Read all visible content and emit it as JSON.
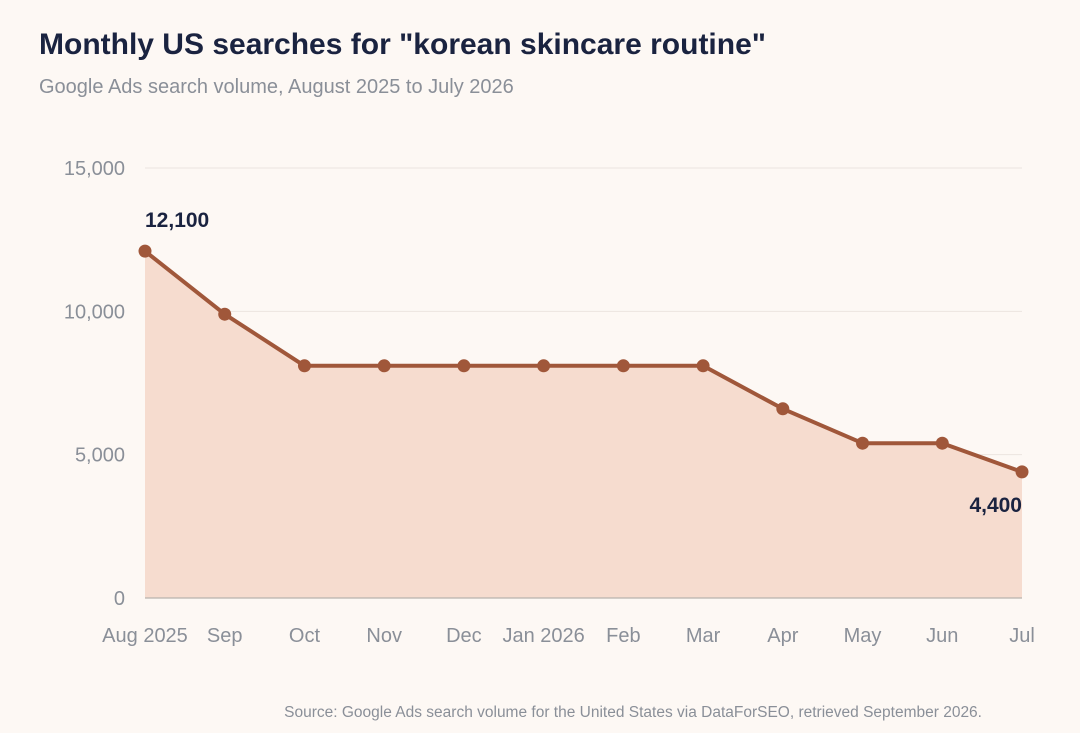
{
  "title": "Monthly US searches for \"korean skincare routine\"",
  "subtitle": "Google Ads search volume, August 2025 to July 2026",
  "source": "Source: Google Ads search volume for the United States via DataForSEO, retrieved September 2026.",
  "colors": {
    "line": "#a0573a",
    "fill": "#f6dccf",
    "grid": "#ece5df",
    "axis": "#b8b3ae",
    "text": "#8a8f98",
    "label": "#1a2340"
  },
  "chart_data": {
    "type": "area",
    "categories": [
      "Aug 2025",
      "Sep",
      "Oct",
      "Nov",
      "Dec",
      "Jan 2026",
      "Feb",
      "Mar",
      "Apr",
      "May",
      "Jun",
      "Jul"
    ],
    "values": [
      12100,
      9900,
      8100,
      8100,
      8100,
      8100,
      8100,
      8100,
      6600,
      5400,
      5400,
      4400
    ],
    "ylim": [
      0,
      15000
    ],
    "yticks": [
      0,
      5000,
      10000,
      15000
    ],
    "ytick_labels": [
      "0",
      "5,000",
      "10,000",
      "15,000"
    ],
    "data_labels": [
      {
        "index": 0,
        "text": "12,100"
      },
      {
        "index": 11,
        "text": "4,400"
      }
    ],
    "grid": true,
    "legend": "none",
    "xlabel": "",
    "ylabel": ""
  }
}
